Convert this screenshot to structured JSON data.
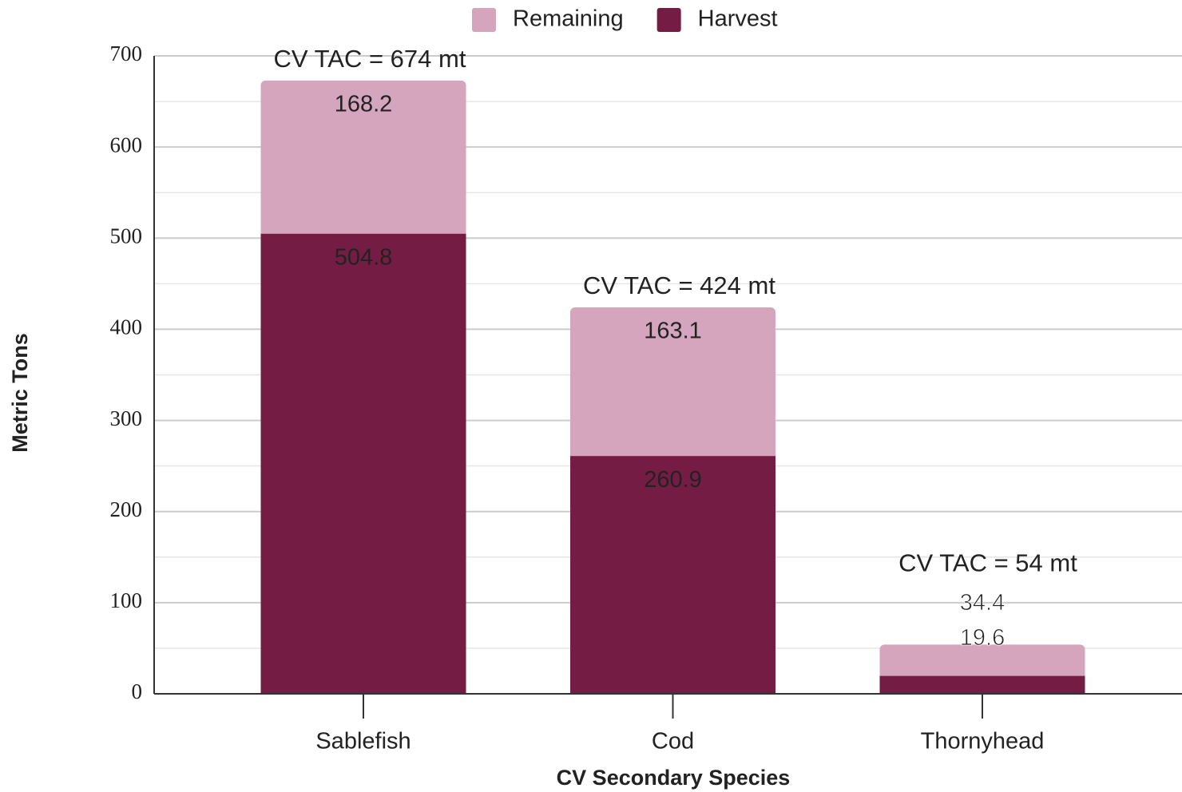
{
  "chart_data": {
    "type": "stacked_bar",
    "categories": [
      "Sablefish",
      "Cod",
      "Thornyhead"
    ],
    "series": [
      {
        "name": "Harvest",
        "color": "#751c45",
        "values": [
          504.8,
          260.9,
          19.6
        ]
      },
      {
        "name": "Remaining",
        "color": "#d5a5be",
        "values": [
          168.2,
          163.1,
          34.4
        ]
      }
    ],
    "annotations": [
      "CV TAC = 674 mt",
      "CV TAC = 424 mt",
      "CV TAC = 54 mt"
    ],
    "xlabel": "CV Secondary Species",
    "ylabel": "Metric Tons",
    "ylim": [
      0,
      700
    ],
    "yticks": [
      0,
      100,
      200,
      300,
      400,
      500,
      600,
      700
    ],
    "minor_yticks": [
      50,
      150,
      250,
      350,
      450,
      550,
      650
    ],
    "grid": true,
    "legend": "top"
  }
}
